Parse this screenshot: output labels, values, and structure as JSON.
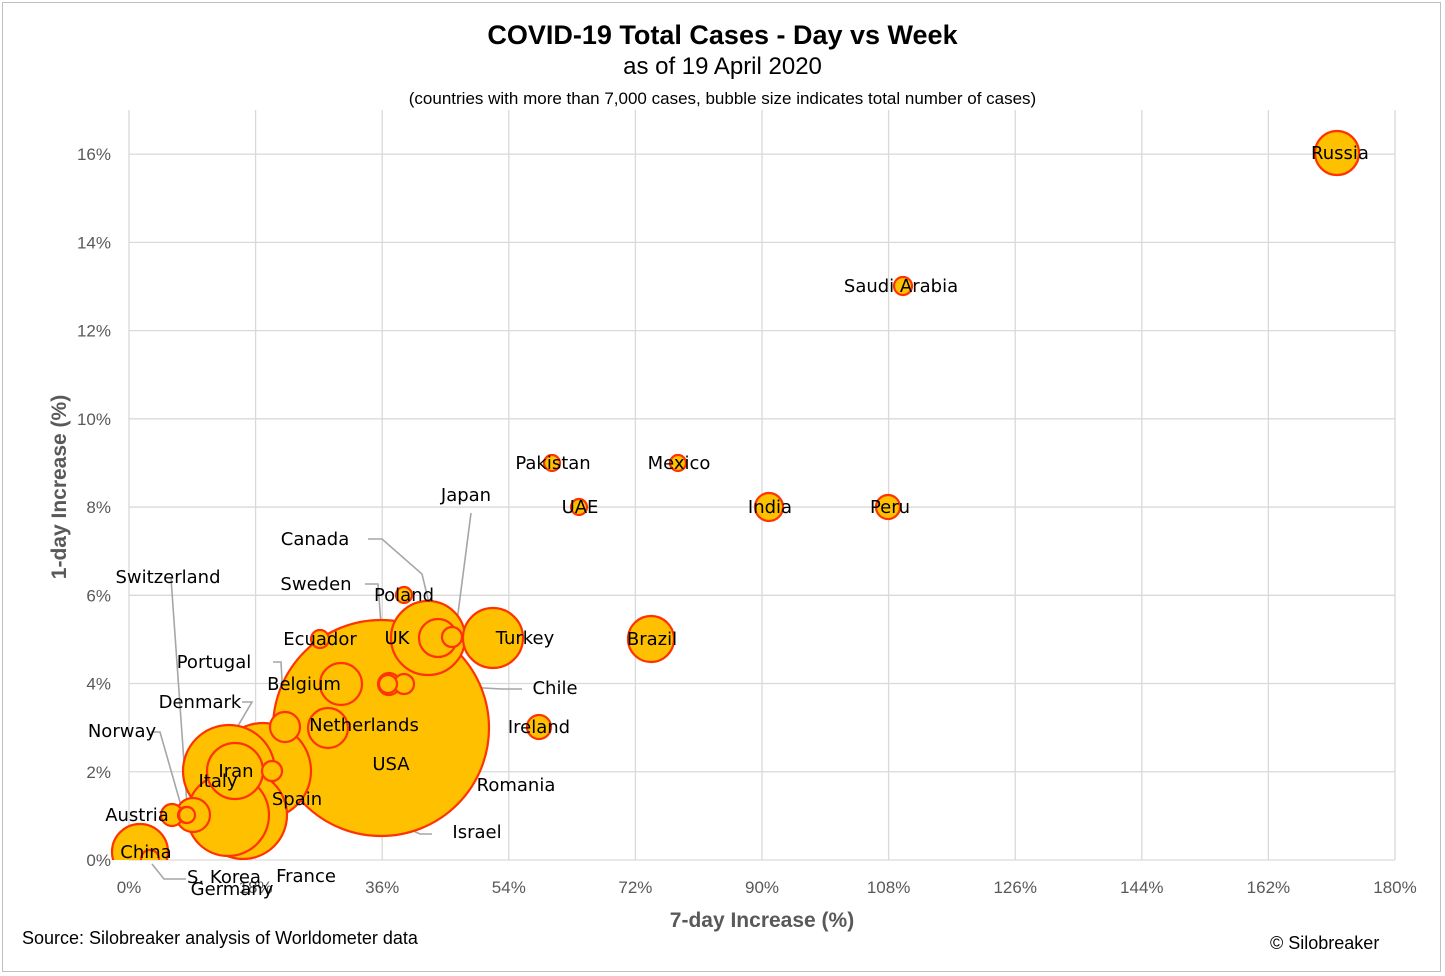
{
  "title": "COVID-19 Total Cases - Day vs Week",
  "subtitle": "as of 19 April 2020",
  "note": "(countries with more than 7,000 cases, bubble size indicates total number of cases)",
  "source": "Source: Silobreaker analysis of Worldometer data",
  "copyright": "© Silobreaker",
  "colors": {
    "bubble_fill": "#FFC000",
    "bubble_stroke": "#FF3300",
    "grid": "#d9d9d9",
    "leader": "#a6a6a6"
  },
  "chart_data": {
    "type": "scatter",
    "bubble": true,
    "xlabel": "7-day Increase (%)",
    "ylabel": "1-day Increase (%)",
    "xlim": [
      0,
      180
    ],
    "ylim": [
      0,
      17
    ],
    "x_ticks": [
      "0%",
      "18%",
      "36%",
      "54%",
      "72%",
      "90%",
      "108%",
      "126%",
      "144%",
      "162%",
      "180%"
    ],
    "y_ticks": [
      "0%",
      "2%",
      "4%",
      "6%",
      "8%",
      "10%",
      "12%",
      "14%",
      "16%"
    ],
    "grid": true,
    "points": [
      {
        "label": "USA",
        "x": 36,
        "y": 3,
        "r": 108
      },
      {
        "label": "Italy",
        "x": 14,
        "y": 2,
        "r": 46
      },
      {
        "label": "Spain",
        "x": 19,
        "y": 2,
        "r": 48
      },
      {
        "label": "France",
        "x": 18,
        "y": 1,
        "r": 44
      },
      {
        "label": "Germany",
        "x": 14,
        "y": 1,
        "r": 41
      },
      {
        "label": "UK",
        "x": 42,
        "y": 5,
        "r": 37
      },
      {
        "label": "Turkey",
        "x": 52,
        "y": 5,
        "r": 30
      },
      {
        "label": "China",
        "x": 1,
        "y": 0,
        "r": 28
      },
      {
        "label": "Iran",
        "x": 15,
        "y": 2,
        "r": 28
      },
      {
        "label": "Russia",
        "x": 172,
        "y": 16,
        "r": 22
      },
      {
        "label": "Brazil",
        "x": 74,
        "y": 5,
        "r": 23
      },
      {
        "label": "Belgium",
        "x": 30,
        "y": 4,
        "r": 21
      },
      {
        "label": "Canada",
        "x": 44,
        "y": 5,
        "r": 19
      },
      {
        "label": "Netherlands",
        "x": 28,
        "y": 3,
        "r": 20
      },
      {
        "label": "Switzerland",
        "x": 9,
        "y": 1,
        "r": 17
      },
      {
        "label": "Portugal",
        "x": 22,
        "y": 3,
        "r": 15
      },
      {
        "label": "India",
        "x": 91,
        "y": 8,
        "r": 14
      },
      {
        "label": "Peru",
        "x": 108,
        "y": 8,
        "r": 12
      },
      {
        "label": "Ireland",
        "x": 58,
        "y": 3,
        "r": 12
      },
      {
        "label": "Sweden",
        "x": 37,
        "y": 4,
        "r": 11
      },
      {
        "label": "Austria",
        "x": 6,
        "y": 1,
        "r": 11
      },
      {
        "label": "Israel",
        "x": 21,
        "y": 2,
        "r": 10
      },
      {
        "label": "S. Korea",
        "x": 2,
        "y": 0,
        "r": 9
      },
      {
        "label": "Saudi Arabia",
        "x": 110,
        "y": 13,
        "r": 9
      },
      {
        "label": "Japan",
        "x": 46,
        "y": 5,
        "r": 10
      },
      {
        "label": "Chile",
        "x": 39,
        "y": 4,
        "r": 10
      },
      {
        "label": "Ecuador",
        "x": 27,
        "y": 5,
        "r": 9
      },
      {
        "label": "Poland",
        "x": 39,
        "y": 6,
        "r": 8
      },
      {
        "label": "Pakistan",
        "x": 60,
        "y": 9,
        "r": 8
      },
      {
        "label": "Romania",
        "x": 38,
        "y": 4,
        "r": 9
      },
      {
        "label": "Mexico",
        "x": 78,
        "y": 9,
        "r": 8
      },
      {
        "label": "UAE",
        "x": 64,
        "y": 8,
        "r": 8
      },
      {
        "label": "Denmark",
        "x": 8,
        "y": 1,
        "r": 8
      },
      {
        "label": "Norway",
        "x": 8,
        "y": 1,
        "r": 8
      }
    ]
  }
}
